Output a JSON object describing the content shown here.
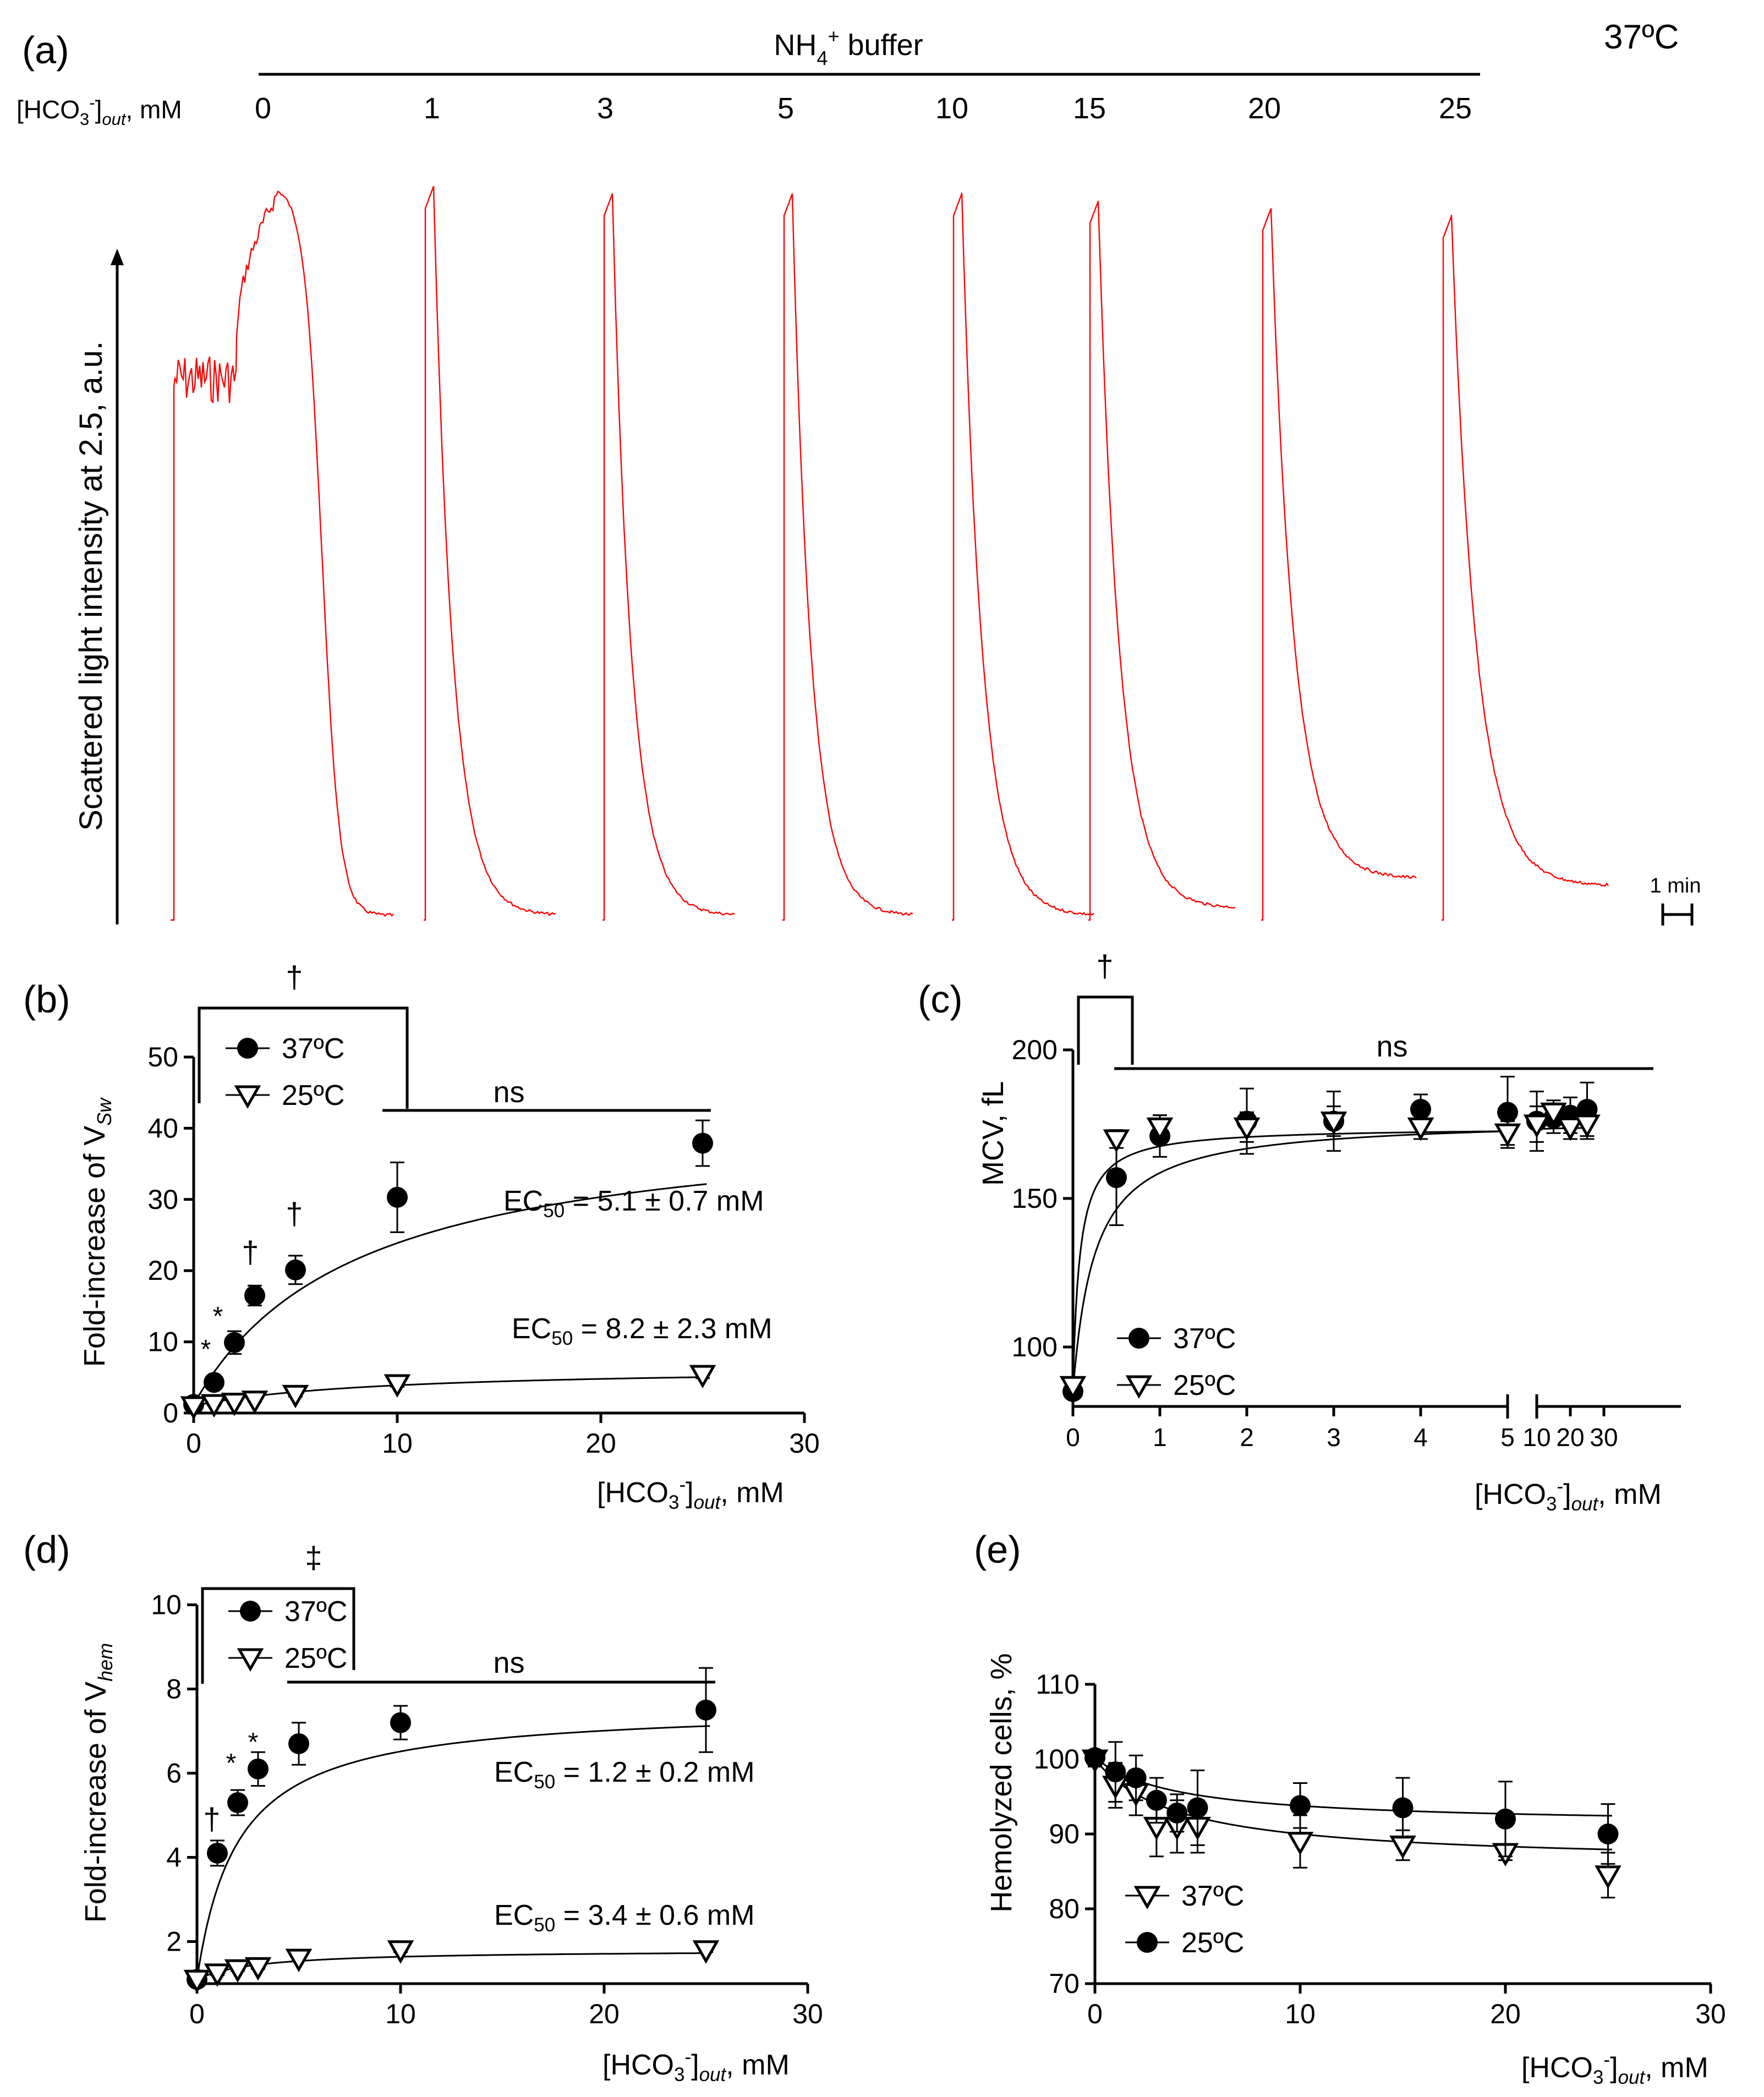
{
  "colors": {
    "ink": "#000000",
    "trace": "#ff0000",
    "background": "#ffffff"
  },
  "chart_data": [
    {
      "panel": "a",
      "panel_label": "(a)",
      "type": "line",
      "temperature": "37ºC",
      "buffer_label": "NH4+ buffer",
      "row_label": "[HCO3-]out, mM",
      "ylabel": "Scattered light intensity at 2.5, a.u.",
      "scale_bar": "1 min",
      "series_color": "#ff0000",
      "trace_labels": [
        "0",
        "1",
        "3",
        "5",
        "10",
        "15",
        "20",
        "25"
      ],
      "relative_peak_heights": [
        0.99,
        0.99,
        0.98,
        0.98,
        0.98,
        0.97,
        0.96,
        0.95
      ],
      "relative_baseline_heights": [
        0.0,
        0.0,
        0.0,
        0.0,
        0.0,
        0.01,
        0.05,
        0.04
      ]
    },
    {
      "panel": "b",
      "panel_label": "(b)",
      "type": "scatter",
      "xlabel": "[HCO3-]out, mM",
      "ylabel": "Fold-increase of VSw",
      "xlim": [
        0,
        30
      ],
      "ylim": [
        0,
        50
      ],
      "xticks": [
        0,
        10,
        20,
        30
      ],
      "yticks": [
        0,
        10,
        20,
        30,
        40,
        50
      ],
      "series": [
        {
          "name": "37ºC",
          "marker": "filled-circle",
          "x": [
            0,
            1,
            2,
            3,
            5,
            10,
            25
          ],
          "y": [
            1.2,
            4.3,
            9.9,
            16.5,
            20.1,
            30.3,
            37.9
          ],
          "err": [
            0.5,
            0.6,
            1.6,
            1.4,
            2.0,
            4.9,
            3.2
          ],
          "ec50": "EC50 = 5.1 ± 0.7 mM",
          "fit": {
            "bottom": 1.2,
            "top": 42,
            "k": 8.0
          }
        },
        {
          "name": "25ºC",
          "marker": "open-triangle-down",
          "x": [
            0,
            1,
            2,
            3,
            5,
            10,
            25
          ],
          "y": [
            1.0,
            1.3,
            1.5,
            1.8,
            2.6,
            4.1,
            5.4
          ],
          "err": [
            0.2,
            0.2,
            0.2,
            0.2,
            0.3,
            0.4,
            0.5
          ],
          "ec50": "EC50 = 8.2 ± 2.3 mM",
          "fit": {
            "bottom": 1.0,
            "top": 6.5,
            "k": 9.0
          }
        }
      ],
      "annotations": [
        "†",
        "ns",
        "†",
        "†",
        "*",
        "*"
      ]
    },
    {
      "panel": "c",
      "panel_label": "(c)",
      "type": "scatter",
      "xlabel": "[HCO3-]out, mM",
      "ylabel": "MCV, fL",
      "x_segments": [
        [
          0,
          5
        ],
        [
          10,
          30
        ]
      ],
      "xticks_seg1": [
        0,
        1,
        2,
        3,
        4,
        5
      ],
      "xticks_seg2": [
        10,
        20,
        30
      ],
      "ylim": [
        80,
        200
      ],
      "yticks": [
        100,
        150,
        200
      ],
      "series": [
        {
          "name": "37ºC",
          "marker": "filled-circle",
          "x": [
            0,
            0.5,
            1,
            2,
            3,
            4,
            5,
            10,
            15,
            20,
            25
          ],
          "y": [
            85,
            157,
            171,
            176,
            176,
            180,
            179,
            176,
            177,
            178,
            180
          ],
          "err": [
            2,
            16,
            7,
            11,
            10,
            5,
            12,
            10,
            5,
            6,
            9
          ],
          "fit": {
            "bottom": 85,
            "top": 177,
            "k": 0.25
          }
        },
        {
          "name": "25ºC",
          "marker": "open-triangle-down",
          "x": [
            0,
            0.5,
            1,
            2,
            3,
            4,
            5,
            10,
            15,
            20,
            25
          ],
          "y": [
            87,
            170,
            174,
            174,
            176,
            174,
            172,
            175,
            179,
            174,
            175
          ],
          "err": [
            2,
            3,
            4,
            5,
            5,
            4,
            4,
            6,
            4,
            4,
            5
          ],
          "fit": {
            "bottom": 87,
            "top": 174,
            "k": 0.08
          }
        }
      ],
      "annotations": [
        "†",
        "ns"
      ]
    },
    {
      "panel": "d",
      "panel_label": "(d)",
      "type": "scatter",
      "xlabel": "[HCO3-]out, mM",
      "ylabel": "Fold-increase of Vhem",
      "xlim": [
        0,
        30
      ],
      "ylim": [
        1,
        10
      ],
      "xticks": [
        0,
        10,
        20,
        30
      ],
      "yticks": [
        2,
        4,
        6,
        8,
        10
      ],
      "series": [
        {
          "name": "37ºC",
          "marker": "filled-circle",
          "x": [
            0,
            1,
            2,
            3,
            5,
            10,
            25
          ],
          "y": [
            1.1,
            4.1,
            5.3,
            6.1,
            6.7,
            7.2,
            7.5
          ],
          "err": [
            0.1,
            0.3,
            0.3,
            0.4,
            0.5,
            0.4,
            1.0
          ],
          "ec50": "EC50 = 1.2 ± 0.2 mM",
          "fit": {
            "bottom": 1.1,
            "top": 7.6,
            "k": 2.0
          }
        },
        {
          "name": "25ºC",
          "marker": "open-triangle-down",
          "x": [
            0,
            1,
            2,
            3,
            5,
            10,
            25
          ],
          "y": [
            1.1,
            1.25,
            1.35,
            1.4,
            1.6,
            1.8,
            1.8
          ],
          "err": [
            0.05,
            0.05,
            0.05,
            0.05,
            0.05,
            0.05,
            0.05
          ],
          "ec50": "EC50 = 3.4 ± 0.6 mM",
          "fit": {
            "bottom": 1.1,
            "top": 1.8,
            "k": 3.0
          }
        }
      ],
      "annotations": [
        "‡",
        "ns",
        "†",
        "*",
        "*"
      ]
    },
    {
      "panel": "e",
      "panel_label": "(e)",
      "type": "scatter",
      "xlabel": "[HCO3-]out, mM",
      "ylabel": "Hemolyzed cells, %",
      "xlim": [
        0,
        30
      ],
      "ylim": [
        70,
        110
      ],
      "xticks": [
        0,
        10,
        20,
        30
      ],
      "yticks": [
        70,
        80,
        90,
        100,
        110
      ],
      "series": [
        {
          "name": "37ºC",
          "marker": "open-triangle-down",
          "x": [
            0,
            1,
            2,
            3,
            4,
            5,
            10,
            15,
            20,
            25
          ],
          "y": [
            100,
            96.5,
            95.5,
            91,
            91,
            91,
            89,
            88.5,
            87.5,
            84.5
          ],
          "err": [
            1.0,
            3.0,
            3.0,
            4.0,
            3.5,
            3.5,
            3.5,
            2.0,
            1.0,
            3.0
          ],
          "fit": {
            "bottom": 100,
            "top": 86,
            "k": 4.0
          }
        },
        {
          "name": "25ºC",
          "marker": "filled-circle",
          "x": [
            0,
            1,
            2,
            3,
            4,
            5,
            10,
            15,
            20,
            25
          ],
          "y": [
            100.2,
            98.3,
            97.5,
            94.5,
            92.8,
            93.5,
            93.8,
            93.5,
            92,
            90
          ],
          "err": [
            1.0,
            4.0,
            3.0,
            3.0,
            2.5,
            5.0,
            3.0,
            4.0,
            5.0,
            4.0
          ],
          "fit": {
            "bottom": 100.2,
            "top": 91.2,
            "k": 4.0
          }
        }
      ]
    }
  ]
}
